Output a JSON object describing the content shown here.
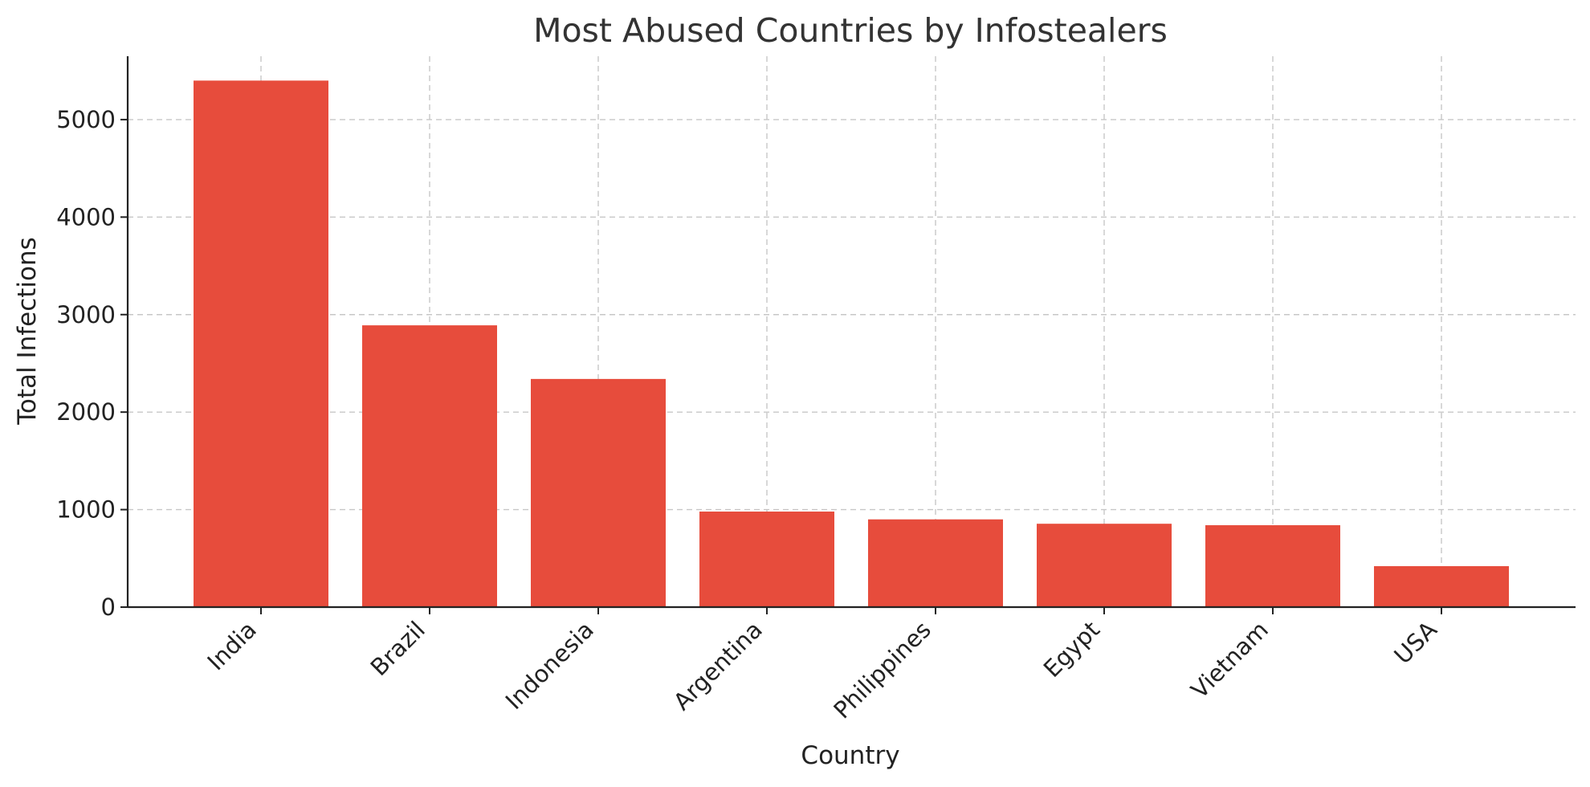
{
  "chart_data": {
    "type": "bar",
    "title": "Most Abused Countries by Infostealers",
    "xlabel": "Country",
    "ylabel": "Total Infections",
    "categories": [
      "India",
      "Brazil",
      "Indonesia",
      "Argentina",
      "Philippines",
      "Egypt",
      "Vietnam",
      "USA"
    ],
    "values": [
      5400,
      2890,
      2340,
      980,
      900,
      855,
      840,
      420
    ],
    "ylim": [
      0,
      5650
    ],
    "yticks": [
      0,
      1000,
      2000,
      3000,
      4000,
      5000
    ],
    "grid": true,
    "bar_color": "#e74c3c",
    "grid_color": "#c7c7c7"
  }
}
